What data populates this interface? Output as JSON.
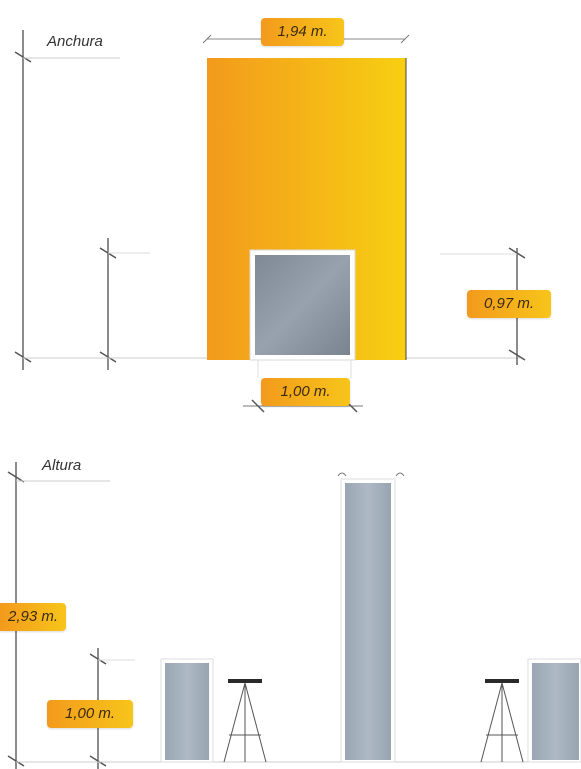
{
  "anchura": {
    "title": "Anchura",
    "width_label": "1,94 m.",
    "window_width_label": "1,00 m.",
    "window_height_label": "0,97 m."
  },
  "altura": {
    "title": "Altura",
    "height_label": "2,93 m.",
    "window_height_label": "1,00 m."
  },
  "colors": {
    "panel_gradient_start": "#f39a1c",
    "panel_gradient_end": "#f7cf12",
    "glass": "#8c96a3",
    "glass_light": "#a9b4c0",
    "line": "#666666"
  }
}
